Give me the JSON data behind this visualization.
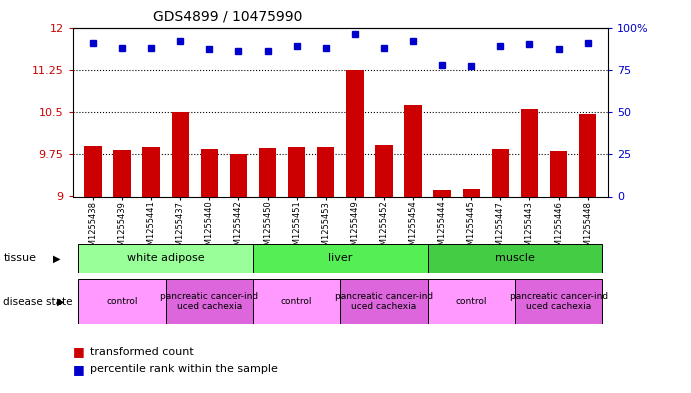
{
  "title": "GDS4899 / 10475990",
  "samples": [
    "GSM1255438",
    "GSM1255439",
    "GSM1255441",
    "GSM1255437",
    "GSM1255440",
    "GSM1255442",
    "GSM1255450",
    "GSM1255451",
    "GSM1255453",
    "GSM1255449",
    "GSM1255452",
    "GSM1255454",
    "GSM1255444",
    "GSM1255445",
    "GSM1255447",
    "GSM1255443",
    "GSM1255446",
    "GSM1255448"
  ],
  "bar_values": [
    9.9,
    9.83,
    9.87,
    10.5,
    9.85,
    9.76,
    9.86,
    9.87,
    9.87,
    11.25,
    9.92,
    10.62,
    9.12,
    9.14,
    9.85,
    10.56,
    9.8,
    10.47
  ],
  "percentile_values": [
    91,
    88,
    88,
    92,
    87,
    86,
    86,
    89,
    88,
    96,
    88,
    92,
    78,
    77,
    89,
    90,
    87,
    91
  ],
  "bar_color": "#cc0000",
  "percentile_color": "#0000cc",
  "ylim_left": [
    9,
    12
  ],
  "ylim_right": [
    0,
    100
  ],
  "yticks_left": [
    9,
    9.75,
    10.5,
    11.25,
    12
  ],
  "ytick_labels_left": [
    "9",
    "9.75",
    "10.5",
    "11.25",
    "12"
  ],
  "yticks_right": [
    0,
    25,
    50,
    75,
    100
  ],
  "ytick_labels_right": [
    "0",
    "25",
    "50",
    "75",
    "100%"
  ],
  "hlines": [
    9.75,
    10.5,
    11.25
  ],
  "tissue_groups": [
    {
      "label": "white adipose",
      "start": 0,
      "end": 6,
      "color": "#99ff99"
    },
    {
      "label": "liver",
      "start": 6,
      "end": 12,
      "color": "#55ee55"
    },
    {
      "label": "muscle",
      "start": 12,
      "end": 18,
      "color": "#44cc44"
    }
  ],
  "disease_groups": [
    {
      "label": "control",
      "start": 0,
      "end": 3,
      "color": "#ff99ff"
    },
    {
      "label": "pancreatic cancer-ind\nuced cachexia",
      "start": 3,
      "end": 6,
      "color": "#dd66dd"
    },
    {
      "label": "control",
      "start": 6,
      "end": 9,
      "color": "#ff99ff"
    },
    {
      "label": "pancreatic cancer-ind\nuced cachexia",
      "start": 9,
      "end": 12,
      "color": "#dd66dd"
    },
    {
      "label": "control",
      "start": 12,
      "end": 15,
      "color": "#ff99ff"
    },
    {
      "label": "pancreatic cancer-ind\nuced cachexia",
      "start": 15,
      "end": 18,
      "color": "#dd66dd"
    }
  ],
  "background_color": "#ffffff",
  "bar_width": 0.6,
  "axis_label_color_left": "#cc0000",
  "axis_label_color_right": "#0000cc"
}
